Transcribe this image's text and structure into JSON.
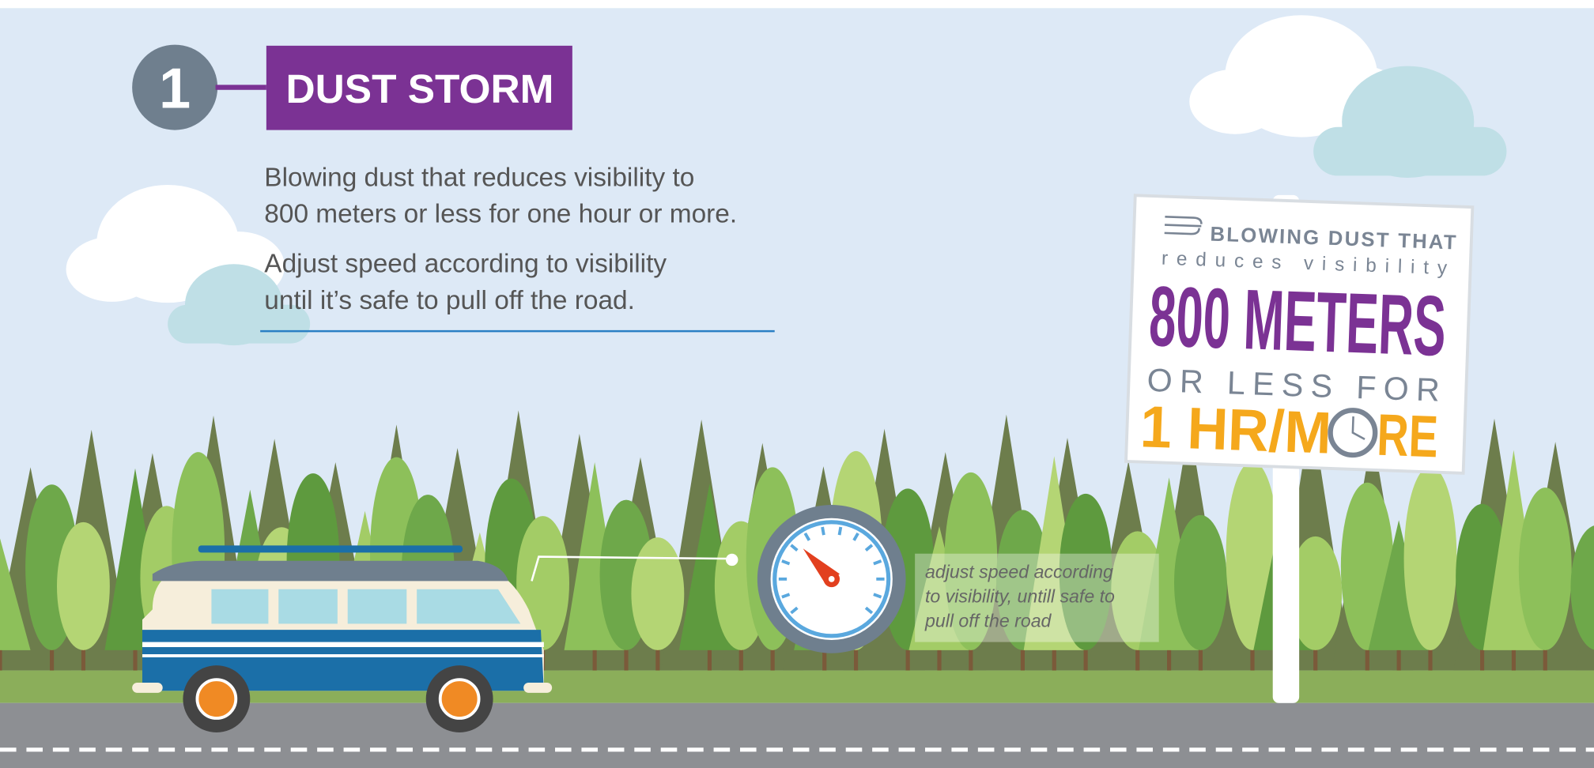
{
  "badge": {
    "number": "1",
    "title": "DUST STORM"
  },
  "description": {
    "paragraphs": [
      [
        "Blowing dust that reduces visibility to",
        "800 meters or less for one hour or more."
      ],
      [
        "Adjust speed according to visibility",
        "until it’s safe to pull off the road."
      ]
    ]
  },
  "caption": {
    "lines": [
      "adjust speed according",
      "to visibility, untill safe to",
      "pull off the road"
    ]
  },
  "sign": {
    "line1": "BLOWING DUST THAT",
    "line2": "reduces visibility",
    "line3": "800 METERS",
    "line4": "OR LESS FOR",
    "line5_before_clock": "1 HR/M",
    "line5_after_clock": "RE"
  }
}
